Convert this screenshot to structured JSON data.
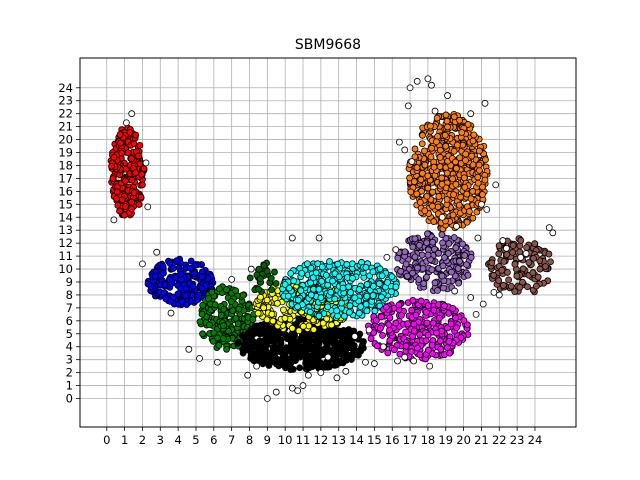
{
  "chart_data": {
    "type": "scatter",
    "title": "SBM9668",
    "xlabel": "",
    "ylabel": "",
    "xlim": [
      -1.5,
      26.3
    ],
    "ylim": [
      -2.2,
      26.3
    ],
    "xticks": [
      0,
      1,
      2,
      3,
      4,
      5,
      6,
      7,
      8,
      9,
      10,
      11,
      12,
      13,
      14,
      15,
      16,
      17,
      18,
      19,
      20,
      21,
      22,
      23,
      24
    ],
    "yticks": [
      0,
      1,
      2,
      3,
      4,
      5,
      6,
      7,
      8,
      9,
      10,
      11,
      12,
      13,
      14,
      15,
      16,
      17,
      18,
      19,
      20,
      21,
      22,
      23,
      24
    ],
    "grid": true,
    "legend": "none",
    "point_edge_color": "#000000",
    "noise_color": "#ffffff",
    "clusters": [
      {
        "color": "#ff0000",
        "x_range": [
          0.2,
          2.1
        ],
        "y_range": [
          14.0,
          21.0
        ],
        "count": 240
      },
      {
        "color": "#ff7f0e",
        "x_range": [
          16.9,
          21.4
        ],
        "y_range": [
          13.0,
          22.0
        ],
        "count": 520
      },
      {
        "color": "#0000ff",
        "x_range": [
          2.3,
          6.0
        ],
        "y_range": [
          7.2,
          10.8
        ],
        "count": 200
      },
      {
        "color": "#008000",
        "x_range": [
          5.2,
          8.3
        ],
        "y_range": [
          3.5,
          8.7
        ],
        "count": 190
      },
      {
        "color": "#000000",
        "x_range": [
          7.3,
          14.5
        ],
        "y_range": [
          2.2,
          6.2
        ],
        "count": 520
      },
      {
        "color": "#ffff00",
        "x_range": [
          8.3,
          13.6
        ],
        "y_range": [
          5.2,
          9.0
        ],
        "count": 260
      },
      {
        "color": "#00ffff",
        "x_range": [
          9.8,
          16.3
        ],
        "y_range": [
          6.2,
          10.8
        ],
        "count": 330
      },
      {
        "color": "#9467bd",
        "x_range": [
          16.2,
          20.5
        ],
        "y_range": [
          8.3,
          12.8
        ],
        "count": 200
      },
      {
        "color": "#ff00ff",
        "x_range": [
          14.6,
          20.3
        ],
        "y_range": [
          3.0,
          7.6
        ],
        "count": 270
      },
      {
        "color": "#8c564b",
        "x_range": [
          21.3,
          25.0
        ],
        "y_range": [
          8.0,
          12.4
        ],
        "count": 130
      },
      {
        "color": "#006400",
        "x_range": [
          8.0,
          9.6
        ],
        "y_range": [
          8.0,
          10.5
        ],
        "count": 30
      }
    ],
    "noise_points": [
      [
        9.0,
        0.0
      ],
      [
        9.5,
        0.5
      ],
      [
        10.4,
        0.8
      ],
      [
        10.7,
        0.6
      ],
      [
        11.0,
        1.0
      ],
      [
        11.3,
        1.8
      ],
      [
        12.0,
        2.0
      ],
      [
        12.9,
        1.6
      ],
      [
        13.4,
        2.1
      ],
      [
        14.5,
        2.8
      ],
      [
        7.9,
        1.8
      ],
      [
        6.2,
        2.8
      ],
      [
        4.6,
        3.8
      ],
      [
        5.2,
        3.1
      ],
      [
        3.6,
        6.6
      ],
      [
        2.8,
        11.3
      ],
      [
        2.0,
        10.4
      ],
      [
        10.4,
        12.4
      ],
      [
        11.9,
        12.4
      ],
      [
        17.4,
        24.5
      ],
      [
        17.0,
        24.0
      ],
      [
        18.0,
        24.7
      ],
      [
        18.2,
        24.2
      ],
      [
        19.1,
        23.4
      ],
      [
        16.9,
        22.6
      ],
      [
        18.4,
        22.2
      ],
      [
        21.2,
        22.8
      ],
      [
        20.4,
        22.0
      ],
      [
        16.4,
        19.8
      ],
      [
        16.7,
        19.2
      ],
      [
        17.1,
        18.3
      ],
      [
        21.0,
        15.0
      ],
      [
        21.3,
        14.6
      ],
      [
        21.8,
        16.5
      ],
      [
        22.4,
        11.6
      ],
      [
        22.2,
        12.2
      ],
      [
        21.7,
        8.2
      ],
      [
        22.0,
        8.0
      ],
      [
        21.1,
        7.3
      ],
      [
        20.7,
        6.5
      ],
      [
        20.4,
        7.8
      ],
      [
        19.5,
        8.3
      ],
      [
        18.1,
        2.5
      ],
      [
        17.2,
        2.9
      ],
      [
        16.7,
        3.2
      ],
      [
        16.3,
        2.9
      ],
      [
        15.0,
        2.7
      ],
      [
        1.4,
        22.0
      ],
      [
        1.1,
        21.3
      ],
      [
        2.2,
        18.2
      ],
      [
        2.3,
        14.8
      ],
      [
        0.4,
        13.8
      ],
      [
        24.8,
        13.2
      ],
      [
        25.0,
        12.8
      ],
      [
        15.7,
        10.9
      ],
      [
        16.2,
        11.5
      ],
      [
        19.6,
        13.3
      ],
      [
        18.8,
        14.0
      ],
      [
        23.2,
        10.9
      ],
      [
        23.5,
        11.2
      ],
      [
        8.4,
        2.5
      ],
      [
        14.7,
        5.3
      ],
      [
        13.9,
        4.8
      ],
      [
        15.5,
        4.0
      ],
      [
        20.8,
        12.4
      ],
      [
        12.4,
        3.2
      ],
      [
        7.0,
        9.2
      ],
      [
        8.1,
        10.0
      ]
    ]
  }
}
